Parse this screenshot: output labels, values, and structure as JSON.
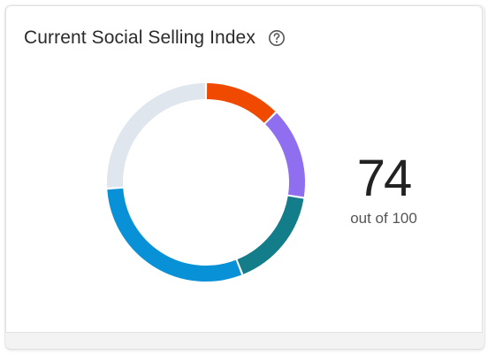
{
  "widget": {
    "title": "Current Social Selling Index",
    "help_icon": "question-circle-icon"
  },
  "score": {
    "value": "74",
    "caption": "out of 100",
    "max": 100
  },
  "ring": {
    "segments": [
      {
        "value": 12.5,
        "color": "#F04A00"
      },
      {
        "value": 15.0,
        "color": "#8F6FF0"
      },
      {
        "value": 16.5,
        "color": "#137D8A"
      },
      {
        "value": 30.0,
        "color": "#0891D6"
      }
    ],
    "track_color": "#DFE6EE"
  }
}
